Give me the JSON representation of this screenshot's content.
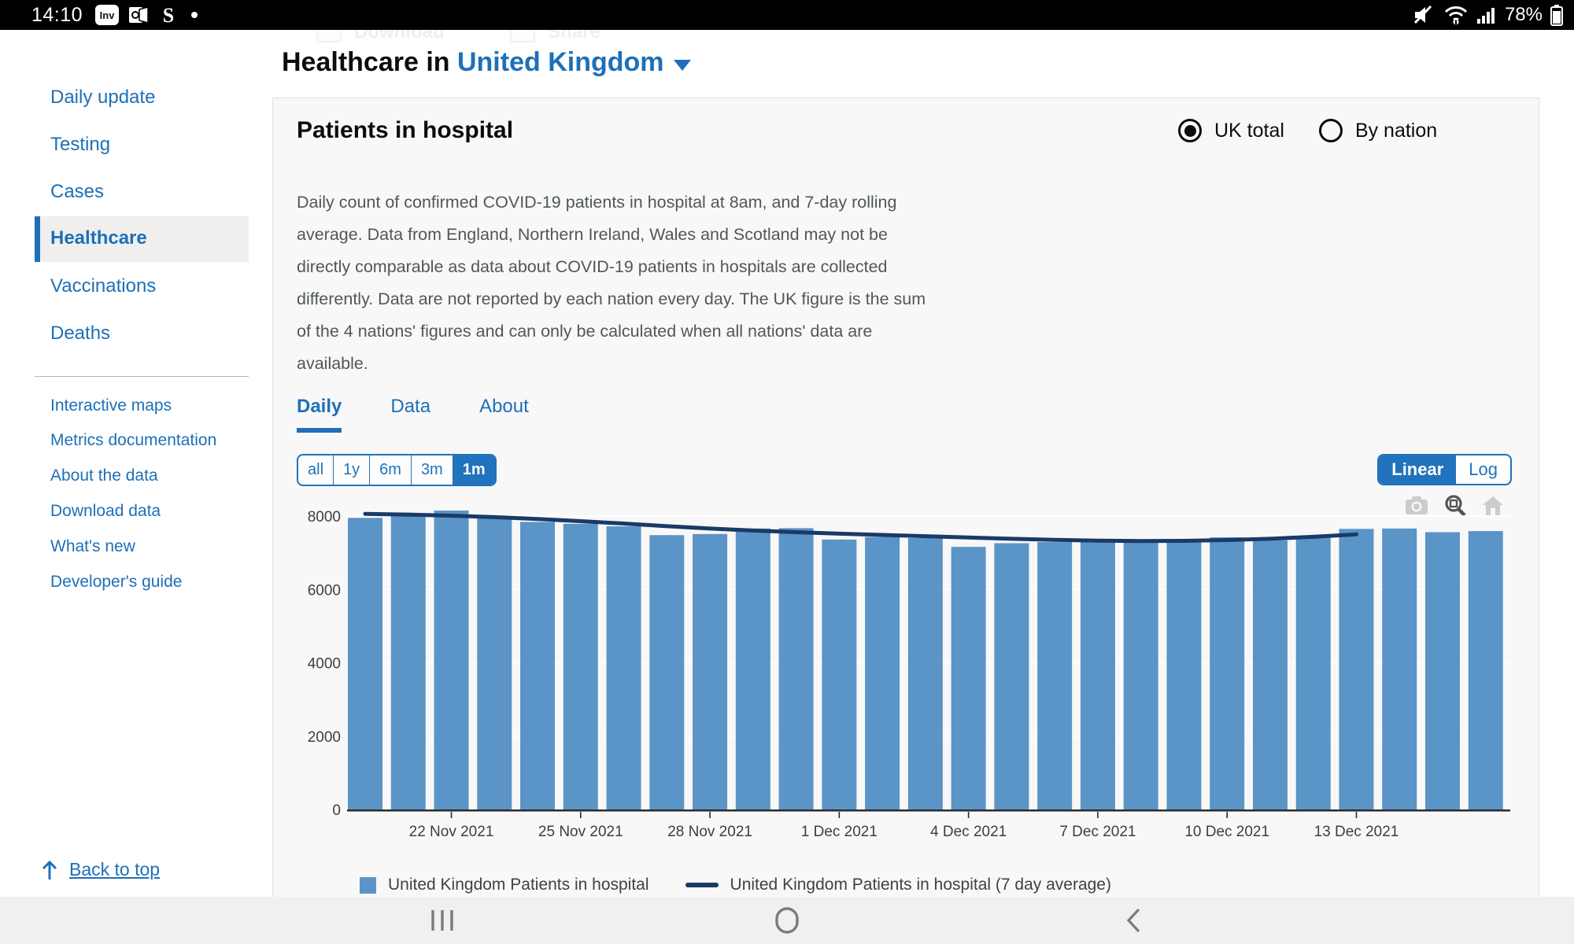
{
  "status_bar": {
    "time": "14:10",
    "battery_percent": "78%",
    "left_icons": [
      "inv-app-icon",
      "mail-app-icon",
      "s-app-icon",
      "notification-dot"
    ],
    "right_icons": [
      "mute-icon",
      "wifi-icon",
      "cell-signal-icon",
      "battery-icon"
    ]
  },
  "ghost_toolbar": {
    "download_label": "Download",
    "share_label": "Share"
  },
  "sidebar": {
    "primary": [
      {
        "label": "Daily update"
      },
      {
        "label": "Testing"
      },
      {
        "label": "Cases"
      },
      {
        "label": "Healthcare",
        "active": true
      },
      {
        "label": "Vaccinations"
      },
      {
        "label": "Deaths"
      }
    ],
    "secondary": [
      {
        "label": "Interactive maps"
      },
      {
        "label": "Metrics documentation"
      },
      {
        "label": "About the data"
      },
      {
        "label": "Download data"
      },
      {
        "label": "What's new"
      },
      {
        "label": "Developer's guide"
      }
    ],
    "back_to_top": "Back to top"
  },
  "header": {
    "title_prefix": "Healthcare in",
    "location": "United Kingdom"
  },
  "panel": {
    "heading": "Patients in hospital",
    "radios": [
      {
        "label": "UK total",
        "selected": true
      },
      {
        "label": "By nation",
        "selected": false
      }
    ],
    "description": "Daily count of confirmed COVID-19 patients in hospital at 8am, and 7-day rolling average. Data from England, Northern Ireland, Wales and Scotland may not be directly comparable as data about COVID-19 patients in hospitals are collected differently. Data are not reported by each nation every day. The UK figure is the sum of the 4 nations' figures and can only be calculated when all nations' data are available.",
    "tabs": [
      {
        "label": "Daily",
        "active": true
      },
      {
        "label": "Data",
        "active": false
      },
      {
        "label": "About",
        "active": false
      }
    ],
    "ranges": [
      {
        "label": "all",
        "active": false
      },
      {
        "label": "1y",
        "active": false
      },
      {
        "label": "6m",
        "active": false
      },
      {
        "label": "3m",
        "active": false
      },
      {
        "label": "1m",
        "active": true
      }
    ],
    "scale": [
      {
        "label": "Linear",
        "active": true
      },
      {
        "label": "Log",
        "active": false
      }
    ],
    "modebar_icons": [
      "camera-icon",
      "zoom-icon",
      "home-icon"
    ]
  },
  "chart_data": {
    "type": "bar",
    "x": [
      "20 Nov 2021",
      "21 Nov 2021",
      "22 Nov 2021",
      "23 Nov 2021",
      "24 Nov 2021",
      "25 Nov 2021",
      "26 Nov 2021",
      "27 Nov 2021",
      "28 Nov 2021",
      "29 Nov 2021",
      "30 Nov 2021",
      "1 Dec 2021",
      "2 Dec 2021",
      "3 Dec 2021",
      "4 Dec 2021",
      "5 Dec 2021",
      "6 Dec 2021",
      "7 Dec 2021",
      "8 Dec 2021",
      "9 Dec 2021",
      "10 Dec 2021",
      "11 Dec 2021",
      "12 Dec 2021",
      "13 Dec 2021",
      "14 Dec 2021",
      "15 Dec 2021",
      "16 Dec 2021"
    ],
    "series": [
      {
        "name": "United Kingdom Patients in hospital",
        "type": "bar",
        "color": "#5b94c7",
        "values": [
          7950,
          8050,
          8150,
          7950,
          7840,
          7790,
          7720,
          7480,
          7510,
          7660,
          7670,
          7360,
          7430,
          7400,
          7160,
          7260,
          7290,
          7320,
          7330,
          7370,
          7420,
          7340,
          7430,
          7650,
          7660,
          7560,
          7590
        ]
      },
      {
        "name": "United Kingdom Patients in hospital (7 day average)",
        "type": "line",
        "color": "#1a3a67",
        "values": [
          8060,
          8040,
          8010,
          7970,
          7920,
          7860,
          7795,
          7725,
          7660,
          7605,
          7560,
          7520,
          7485,
          7450,
          7415,
          7380,
          7350,
          7330,
          7320,
          7325,
          7345,
          7380,
          7435,
          7500
        ],
        "ends_at": "13 Dec 2021"
      }
    ],
    "ylim": [
      0,
      8260
    ],
    "yticks": [
      0,
      2000,
      4000,
      6000,
      8000
    ],
    "xticks": [
      "22 Nov 2021",
      "25 Nov 2021",
      "28 Nov 2021",
      "1 Dec 2021",
      "4 Dec 2021",
      "7 Dec 2021",
      "10 Dec 2021",
      "13 Dec 2021"
    ],
    "grid": true,
    "legend_position": "bottom"
  },
  "android_nav": {
    "icons": [
      "recents-icon",
      "home-nav-icon",
      "back-icon"
    ]
  }
}
